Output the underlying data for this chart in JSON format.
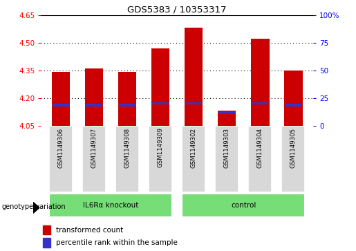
{
  "title": "GDS5383 / 10353317",
  "samples": [
    "GSM1149306",
    "GSM1149307",
    "GSM1149308",
    "GSM1149309",
    "GSM1149302",
    "GSM1149303",
    "GSM1149304",
    "GSM1149305"
  ],
  "groups": [
    "IL6Rα knockout",
    "IL6Rα knockout",
    "IL6Rα knockout",
    "IL6Rα knockout",
    "control",
    "control",
    "control",
    "control"
  ],
  "group_order": [
    "IL6Rα knockout",
    "control"
  ],
  "red_values": [
    4.34,
    4.36,
    4.34,
    4.47,
    4.58,
    4.13,
    4.52,
    4.35
  ],
  "blue_values": [
    4.16,
    4.16,
    4.16,
    4.17,
    4.17,
    4.12,
    4.17,
    4.16
  ],
  "ymin": 4.05,
  "ymax": 4.65,
  "yticks": [
    4.05,
    4.2,
    4.35,
    4.5,
    4.65
  ],
  "right_yticks_pct": [
    0,
    25,
    50,
    75,
    100
  ],
  "right_ytick_labels": [
    "0",
    "25",
    "50",
    "75",
    "100%"
  ],
  "grid_lines": [
    4.2,
    4.35,
    4.5
  ],
  "bar_color": "#cc0000",
  "blue_color": "#3333cc",
  "bg_color": "#d8d8d8",
  "plot_bg": "#ffffff",
  "green_color": "#77dd77",
  "legend_red": "transformed count",
  "legend_blue": "percentile rank within the sample",
  "genotype_label": "genotype/variation",
  "bar_width": 0.55
}
